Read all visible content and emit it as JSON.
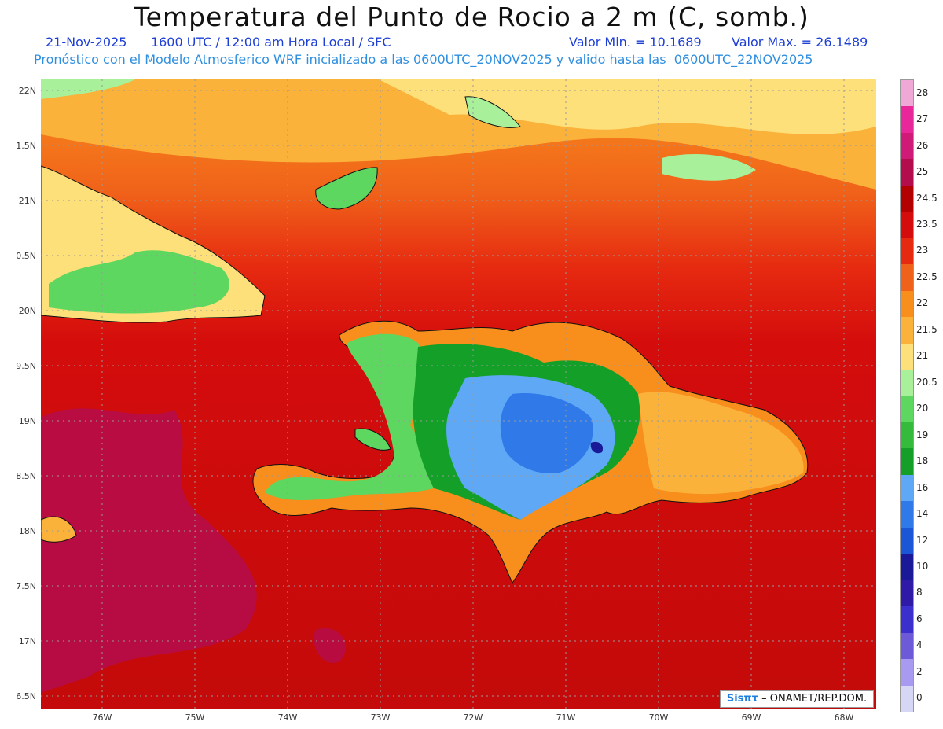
{
  "title": "Temperatura del Punto de Rocio a 2 m (C, somb.)",
  "subtitle": {
    "date": "21-Nov-2025",
    "time": "1600 UTC / 12:00 am Hora Local / SFC",
    "value_min": "Valor Min. = 10.1689",
    "value_max": "Valor Max. = 26.1489"
  },
  "info_line": "Pronóstico con el Modelo Atmosferico WRF inicializado a las 0600UTC_20NOV2025 y valido hasta las  0600UTC_22NOV2025",
  "lat_labels": [
    "22N",
    "1.5N",
    "21N",
    "0.5N",
    "20N",
    "9.5N",
    "19N",
    "8.5N",
    "18N",
    "7.5N",
    "17N",
    "6.5N"
  ],
  "lon_labels": [
    "76W",
    "75W",
    "74W",
    "73W",
    "72W",
    "71W",
    "70W",
    "69W",
    "68W"
  ],
  "legend": {
    "labels": [
      "28",
      "27",
      "26",
      "25",
      "24.5",
      "23.5",
      "23",
      "22.5",
      "22",
      "21.5",
      "21",
      "20.5",
      "20",
      "19",
      "18",
      "16",
      "14",
      "12",
      "10",
      "8",
      "6",
      "4",
      "2",
      "0"
    ],
    "colors": [
      "#f0a9d6",
      "#e8289a",
      "#d01a78",
      "#b40d4e",
      "#b30000",
      "#d40c0c",
      "#e62a10",
      "#f0621a",
      "#f88e1c",
      "#fbb23a",
      "#fde07a",
      "#a8f09a",
      "#5ed760",
      "#34bb3c",
      "#14a028",
      "#5fa8f5",
      "#2f7ae8",
      "#1a56d6",
      "#1a1a99",
      "#2f1aa8",
      "#3b2fcd",
      "#6c5ad8",
      "#a89af0",
      "#d6d6f5"
    ]
  },
  "credit": {
    "logo": "Sisπτ",
    "text": " – ONAMET/REP.DOM."
  }
}
